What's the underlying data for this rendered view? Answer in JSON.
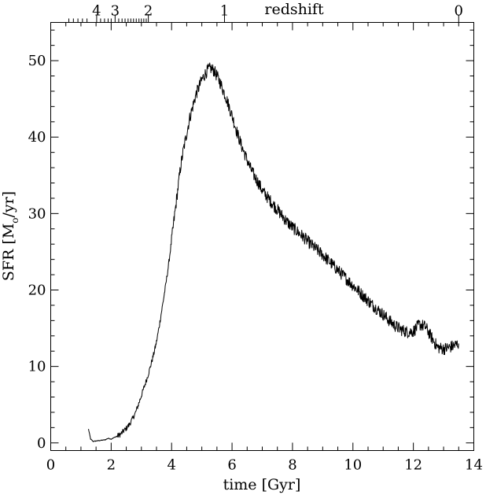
{
  "chart_data": {
    "type": "line",
    "xlabel": "time [Gyr]",
    "ylabel": "SFR [M",
    "ylabel_sub": "o",
    "ylabel_tail": "/yr]",
    "top_axis_label": "redshift",
    "xlim": [
      0,
      14
    ],
    "ylim": [
      -1,
      55
    ],
    "x_ticks": [
      0,
      2,
      4,
      6,
      8,
      10,
      12,
      14
    ],
    "x_tick_labels": [
      "0",
      "2",
      "4",
      "6",
      "8",
      "10",
      "12",
      "14"
    ],
    "y_ticks": [
      0,
      10,
      20,
      30,
      40,
      50
    ],
    "y_tick_labels": [
      "0",
      "10",
      "20",
      "30",
      "40",
      "50"
    ],
    "redshift_ticks": [
      {
        "z": 4,
        "time": 1.52,
        "label": "4"
      },
      {
        "z": 3,
        "time": 2.13,
        "label": "3"
      },
      {
        "z": 2,
        "time": 3.23,
        "label": "2"
      },
      {
        "z": 1,
        "time": 5.75,
        "label": "1"
      },
      {
        "z": 0,
        "time": 13.5,
        "label": "0"
      }
    ],
    "redshift_minor_times": [
      0.6,
      0.75,
      0.9,
      1.05,
      1.2,
      1.65,
      1.78,
      1.9,
      2.0,
      2.25,
      2.36,
      2.46,
      2.56,
      2.65,
      2.74,
      2.83,
      2.92,
      3.0,
      3.08,
      3.16
    ],
    "grid": false,
    "legend": "none",
    "series": [
      {
        "x": [
          1.25,
          1.32,
          1.4,
          1.6,
          1.8,
          1.9,
          2.0,
          2.1,
          2.2,
          2.3,
          2.4,
          2.5,
          2.6,
          2.7,
          2.8,
          2.9,
          3.0,
          3.1,
          3.2,
          3.3,
          3.4,
          3.5,
          3.6,
          3.7,
          3.8,
          3.9,
          4.0,
          4.1,
          4.2,
          4.3,
          4.4,
          4.5,
          4.6,
          4.7,
          4.8,
          4.9,
          5.0,
          5.1,
          5.2,
          5.3,
          5.4,
          5.5,
          5.6,
          5.7,
          5.8,
          5.9,
          6.0,
          6.1,
          6.2,
          6.3,
          6.4,
          6.5,
          6.6,
          6.7,
          6.8,
          6.9,
          7.0,
          7.2,
          7.4,
          7.6,
          7.8,
          8.0,
          8.2,
          8.4,
          8.6,
          8.8,
          9.0,
          9.2,
          9.4,
          9.6,
          9.8,
          10.0,
          10.2,
          10.4,
          10.6,
          10.8,
          11.0,
          11.2,
          11.4,
          11.6,
          11.8,
          12.0,
          12.2,
          12.4,
          12.6,
          12.8,
          13.0,
          13.2,
          13.4,
          13.45,
          13.5
        ],
        "y": [
          1.8,
          0.5,
          0.2,
          0.3,
          0.4,
          0.6,
          0.5,
          0.7,
          0.9,
          1.1,
          1.5,
          1.9,
          2.4,
          3.1,
          3.9,
          5.0,
          6.2,
          7.4,
          8.6,
          10.0,
          11.5,
          13.2,
          15.5,
          18.0,
          20.5,
          23.3,
          26.5,
          29.8,
          33.0,
          36.2,
          38.5,
          40.5,
          42.5,
          44.0,
          45.5,
          46.5,
          47.5,
          48.2,
          48.8,
          49.0,
          48.7,
          48.0,
          47.2,
          46.2,
          45.2,
          44.0,
          42.8,
          41.5,
          40.2,
          39.0,
          38.0,
          37.0,
          36.0,
          35.2,
          34.5,
          33.8,
          33.0,
          32.0,
          31.0,
          30.0,
          29.0,
          28.2,
          27.5,
          26.8,
          26.0,
          25.3,
          24.6,
          23.8,
          23.0,
          22.2,
          21.4,
          20.6,
          19.8,
          19.0,
          18.2,
          17.5,
          16.8,
          16.0,
          15.3,
          14.8,
          14.5,
          14.6,
          15.5,
          15.2,
          13.8,
          12.5,
          12.3,
          12.5,
          12.8,
          12.9,
          13.0
        ],
        "noise_amplitude": 0.8
      }
    ]
  }
}
